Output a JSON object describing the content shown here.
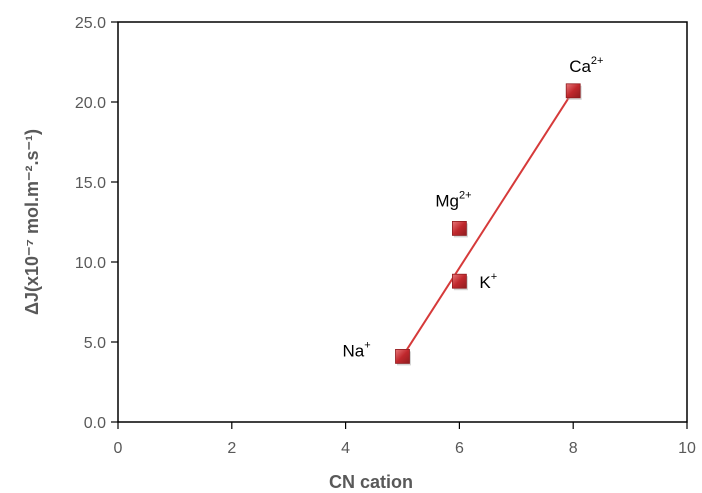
{
  "chart_data": {
    "type": "scatter",
    "xlabel": "CN cation",
    "ylabel": "ΔJ(x10⁻⁷ mol.m⁻².s⁻¹)",
    "xlim": [
      0,
      10
    ],
    "ylim": [
      0,
      25
    ],
    "x_ticks": [
      "0",
      "2",
      "4",
      "6",
      "8",
      "10"
    ],
    "y_ticks": [
      "0.0",
      "5.0",
      "10.0",
      "15.0",
      "20.0",
      "25.0"
    ],
    "grid": false,
    "legend": "none",
    "series": [
      {
        "points": [
          {
            "x": 5,
            "y": 4.1,
            "label": "Na",
            "charge": "+"
          },
          {
            "x": 6,
            "y": 8.8,
            "label": "K",
            "charge": "+"
          },
          {
            "x": 6,
            "y": 12.1,
            "label": "Mg",
            "charge": "2+"
          },
          {
            "x": 8,
            "y": 20.7,
            "label": "Ca",
            "charge": "2+"
          }
        ],
        "marker_color": "#c0282d"
      }
    ],
    "trendline": {
      "x": [
        5,
        8
      ],
      "y": [
        4.1,
        20.7
      ],
      "color": "#d63a3a"
    }
  }
}
